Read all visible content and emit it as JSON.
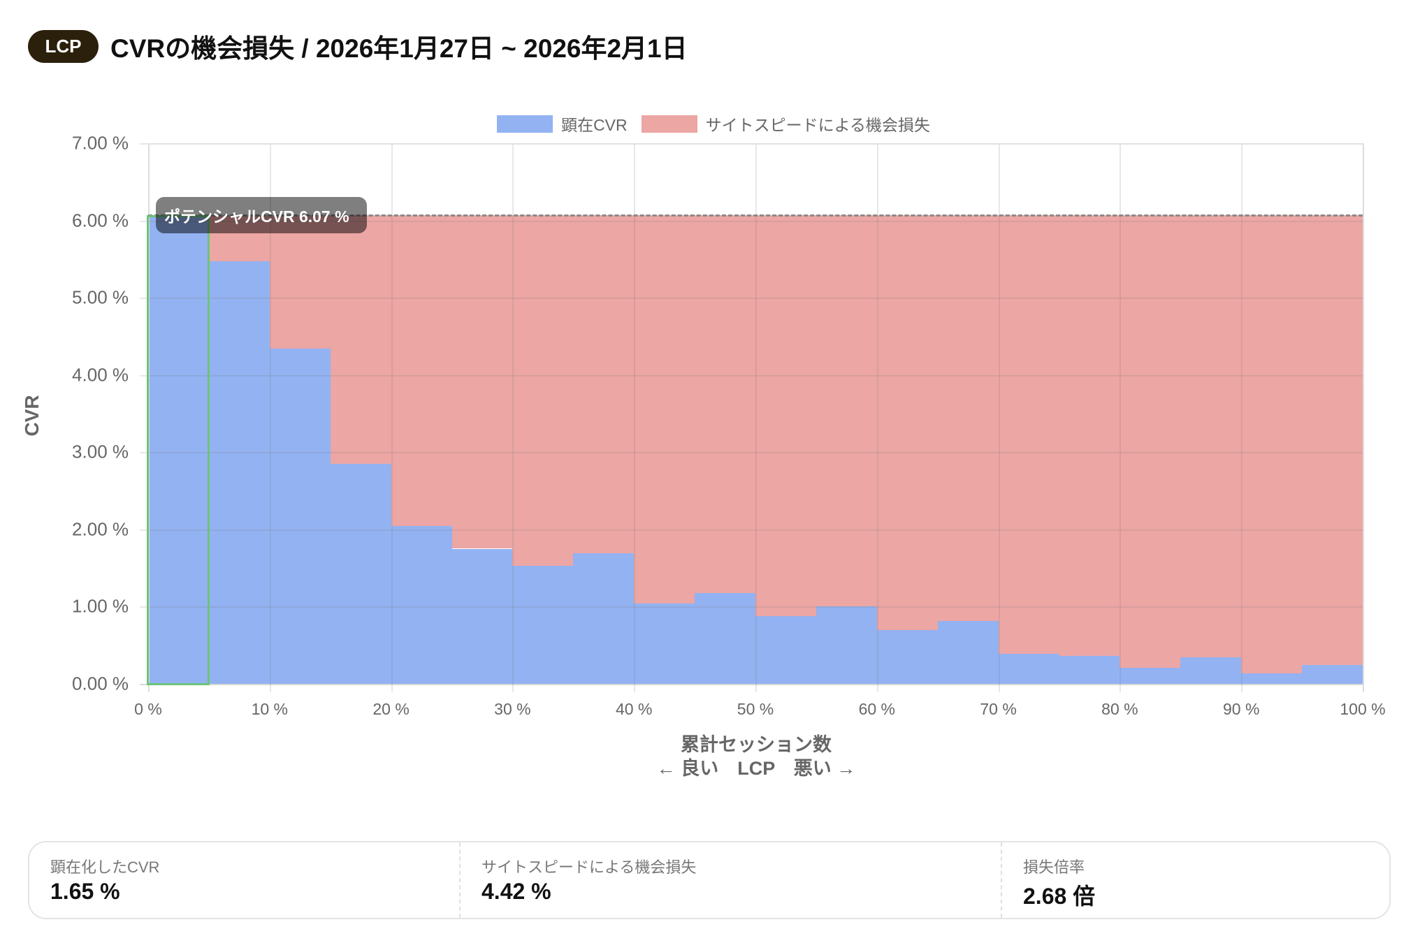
{
  "header": {
    "badge": "LCP",
    "title": "CVRの機会損失 / 2026年1月27日 ~ 2026年2月1日"
  },
  "legend": [
    {
      "label": "顕在CVR",
      "color": "#93b2f2"
    },
    {
      "label": "サイトスピードによる機会損失",
      "color": "#eca6a4"
    }
  ],
  "tooltip": {
    "text": "ポテンシャルCVR 6.07 %"
  },
  "axis": {
    "ylabel": "CVR",
    "xlabel_line1": "累計セッション数",
    "xlabel_line2": "← 良い　LCP　悪い →"
  },
  "summary": [
    {
      "label": "顕在化したCVR",
      "value": "1.65 %"
    },
    {
      "label": "サイトスピードによる機会損失",
      "value": "4.42 %"
    },
    {
      "label": "損失倍率",
      "value": "2.68 倍"
    }
  ],
  "chart_data": {
    "type": "bar",
    "title": "CVRの機会損失 / 2026年1月27日 ~ 2026年2月1日",
    "xlabel": "累計セッション数 ← 良い LCP 悪い →",
    "ylabel": "CVR",
    "ylim": [
      0,
      7
    ],
    "xlim": [
      0,
      100
    ],
    "grid": true,
    "legend_position": "top",
    "y_ticks": [
      "0.00 %",
      "1.00 %",
      "2.00 %",
      "3.00 %",
      "4.00 %",
      "5.00 %",
      "6.00 %",
      "7.00 %"
    ],
    "x_ticks": [
      "0 %",
      "10 %",
      "20 %",
      "30 %",
      "40 %",
      "50 %",
      "60 %",
      "70 %",
      "80 %",
      "90 %",
      "100 %"
    ],
    "categories": [
      "0-5%",
      "5-10%",
      "10-15%",
      "15-20%",
      "20-25%",
      "25-30%",
      "30-35%",
      "35-40%",
      "40-45%",
      "45-50%",
      "50-55%",
      "55-60%",
      "60-65%",
      "65-70%",
      "70-75%",
      "75-80%",
      "80-85%",
      "85-90%",
      "90-95%",
      "95-100%"
    ],
    "potential_cvr": 6.07,
    "series": [
      {
        "name": "顕在CVR",
        "color": "#93b2f2",
        "values": [
          6.07,
          5.47,
          4.34,
          2.85,
          2.04,
          1.75,
          1.53,
          1.69,
          1.04,
          1.18,
          0.88,
          1.0,
          0.7,
          0.81,
          0.39,
          0.36,
          0.21,
          0.34,
          0.14,
          0.24
        ]
      },
      {
        "name": "サイトスピードによる機会損失",
        "color": "#eca6a4",
        "values": [
          0.0,
          0.6,
          1.73,
          3.22,
          4.03,
          4.32,
          4.54,
          4.38,
          5.03,
          4.89,
          5.19,
          5.07,
          5.37,
          5.26,
          5.68,
          5.71,
          5.86,
          5.73,
          5.93,
          5.83
        ]
      }
    ],
    "annotations": [
      "ポテンシャルCVR 6.07 %"
    ],
    "highlight_bar_index": 0
  }
}
